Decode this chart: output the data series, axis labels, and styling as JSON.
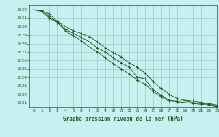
{
  "title": "Graphe pression niveau de la mer (hPa)",
  "bg_color": "#c8f0f0",
  "grid_color": "#a0c8c8",
  "line_color": "#1a6020",
  "xlim": [
    -0.5,
    23
  ],
  "ylim": [
    1020.5,
    1032.5
  ],
  "yticks": [
    1021,
    1022,
    1023,
    1024,
    1025,
    1026,
    1027,
    1028,
    1029,
    1030,
    1031,
    1032
  ],
  "xticks": [
    0,
    1,
    2,
    3,
    4,
    5,
    6,
    7,
    8,
    9,
    10,
    11,
    12,
    13,
    14,
    15,
    16,
    17,
    18,
    19,
    20,
    21,
    22,
    23
  ],
  "line1_x": [
    0,
    1,
    2,
    3,
    4,
    5,
    6,
    7,
    8,
    9,
    10,
    11,
    12,
    13,
    14,
    15,
    16,
    17,
    18,
    19,
    20,
    21,
    22,
    23
  ],
  "line1_y": [
    1032.0,
    1031.9,
    1031.2,
    1030.5,
    1029.7,
    1029.2,
    1028.7,
    1028.2,
    1027.5,
    1027.0,
    1026.3,
    1025.7,
    1025.2,
    1024.0,
    1023.8,
    1022.5,
    1021.9,
    1021.3,
    1021.2,
    1021.2,
    1021.0,
    1020.9,
    1020.8,
    1020.6
  ],
  "line2_x": [
    0,
    1,
    2,
    3,
    4,
    5,
    6,
    7,
    8,
    9,
    10,
    11,
    12,
    13,
    14,
    15,
    16,
    17,
    18,
    19,
    20,
    21,
    22,
    23
  ],
  "line2_y": [
    1032.0,
    1031.9,
    1031.5,
    1030.6,
    1030.0,
    1029.5,
    1029.2,
    1028.8,
    1028.2,
    1027.5,
    1026.9,
    1026.4,
    1025.7,
    1025.2,
    1024.5,
    1023.5,
    1022.7,
    1022.0,
    1021.5,
    1021.3,
    1021.2,
    1021.0,
    1020.9,
    1020.7
  ],
  "line3_x": [
    0,
    1,
    2,
    3,
    4,
    5,
    6,
    7,
    8,
    9,
    10,
    11,
    12,
    13,
    14,
    15,
    16,
    17,
    18,
    19,
    20,
    21,
    22,
    23
  ],
  "line3_y": [
    1032.0,
    1031.8,
    1031.0,
    1030.5,
    1029.5,
    1028.9,
    1028.3,
    1027.6,
    1027.0,
    1026.3,
    1025.6,
    1025.0,
    1024.4,
    1023.7,
    1023.2,
    1022.3,
    1021.7,
    1021.2,
    1021.1,
    1021.0,
    1020.9,
    1020.8,
    1020.7,
    1020.5
  ],
  "ytick_fontsize": 4.5,
  "xtick_fontsize": 4.5,
  "xlabel_fontsize": 5.5
}
